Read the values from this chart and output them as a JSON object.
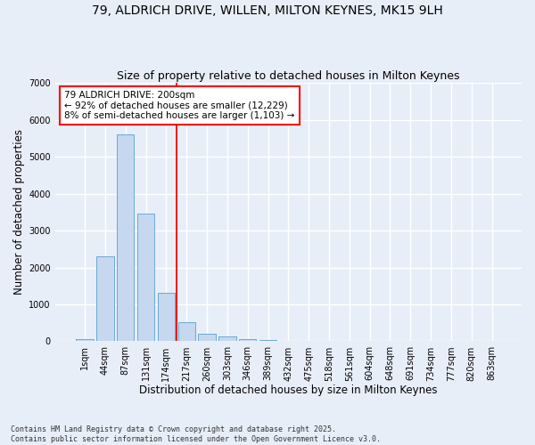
{
  "title": "79, ALDRICH DRIVE, WILLEN, MILTON KEYNES, MK15 9LH",
  "subtitle": "Size of property relative to detached houses in Milton Keynes",
  "xlabel": "Distribution of detached houses by size in Milton Keynes",
  "ylabel": "Number of detached properties",
  "categories": [
    "1sqm",
    "44sqm",
    "87sqm",
    "131sqm",
    "174sqm",
    "217sqm",
    "260sqm",
    "303sqm",
    "346sqm",
    "389sqm",
    "432sqm",
    "475sqm",
    "518sqm",
    "561sqm",
    "604sqm",
    "648sqm",
    "691sqm",
    "734sqm",
    "777sqm",
    "820sqm",
    "863sqm"
  ],
  "values": [
    70,
    2300,
    5600,
    3450,
    1320,
    520,
    200,
    130,
    60,
    40,
    5,
    3,
    2,
    1,
    0,
    0,
    0,
    0,
    0,
    0,
    0
  ],
  "bar_color": "#c5d8ef",
  "bar_edge_color": "#6aaad4",
  "vline_x": 4.52,
  "vline_color": "red",
  "annotation_text": "79 ALDRICH DRIVE: 200sqm\n← 92% of detached houses are smaller (12,229)\n8% of semi-detached houses are larger (1,103) →",
  "annotation_box_color": "white",
  "annotation_box_edge_color": "red",
  "ylim": [
    0,
    7000
  ],
  "yticks": [
    0,
    1000,
    2000,
    3000,
    4000,
    5000,
    6000,
    7000
  ],
  "bg_color": "#e8eef8",
  "grid_color": "white",
  "footnote": "Contains HM Land Registry data © Crown copyright and database right 2025.\nContains public sector information licensed under the Open Government Licence v3.0.",
  "title_fontsize": 10,
  "subtitle_fontsize": 9,
  "label_fontsize": 8.5,
  "tick_fontsize": 7,
  "annotation_fontsize": 7.5
}
